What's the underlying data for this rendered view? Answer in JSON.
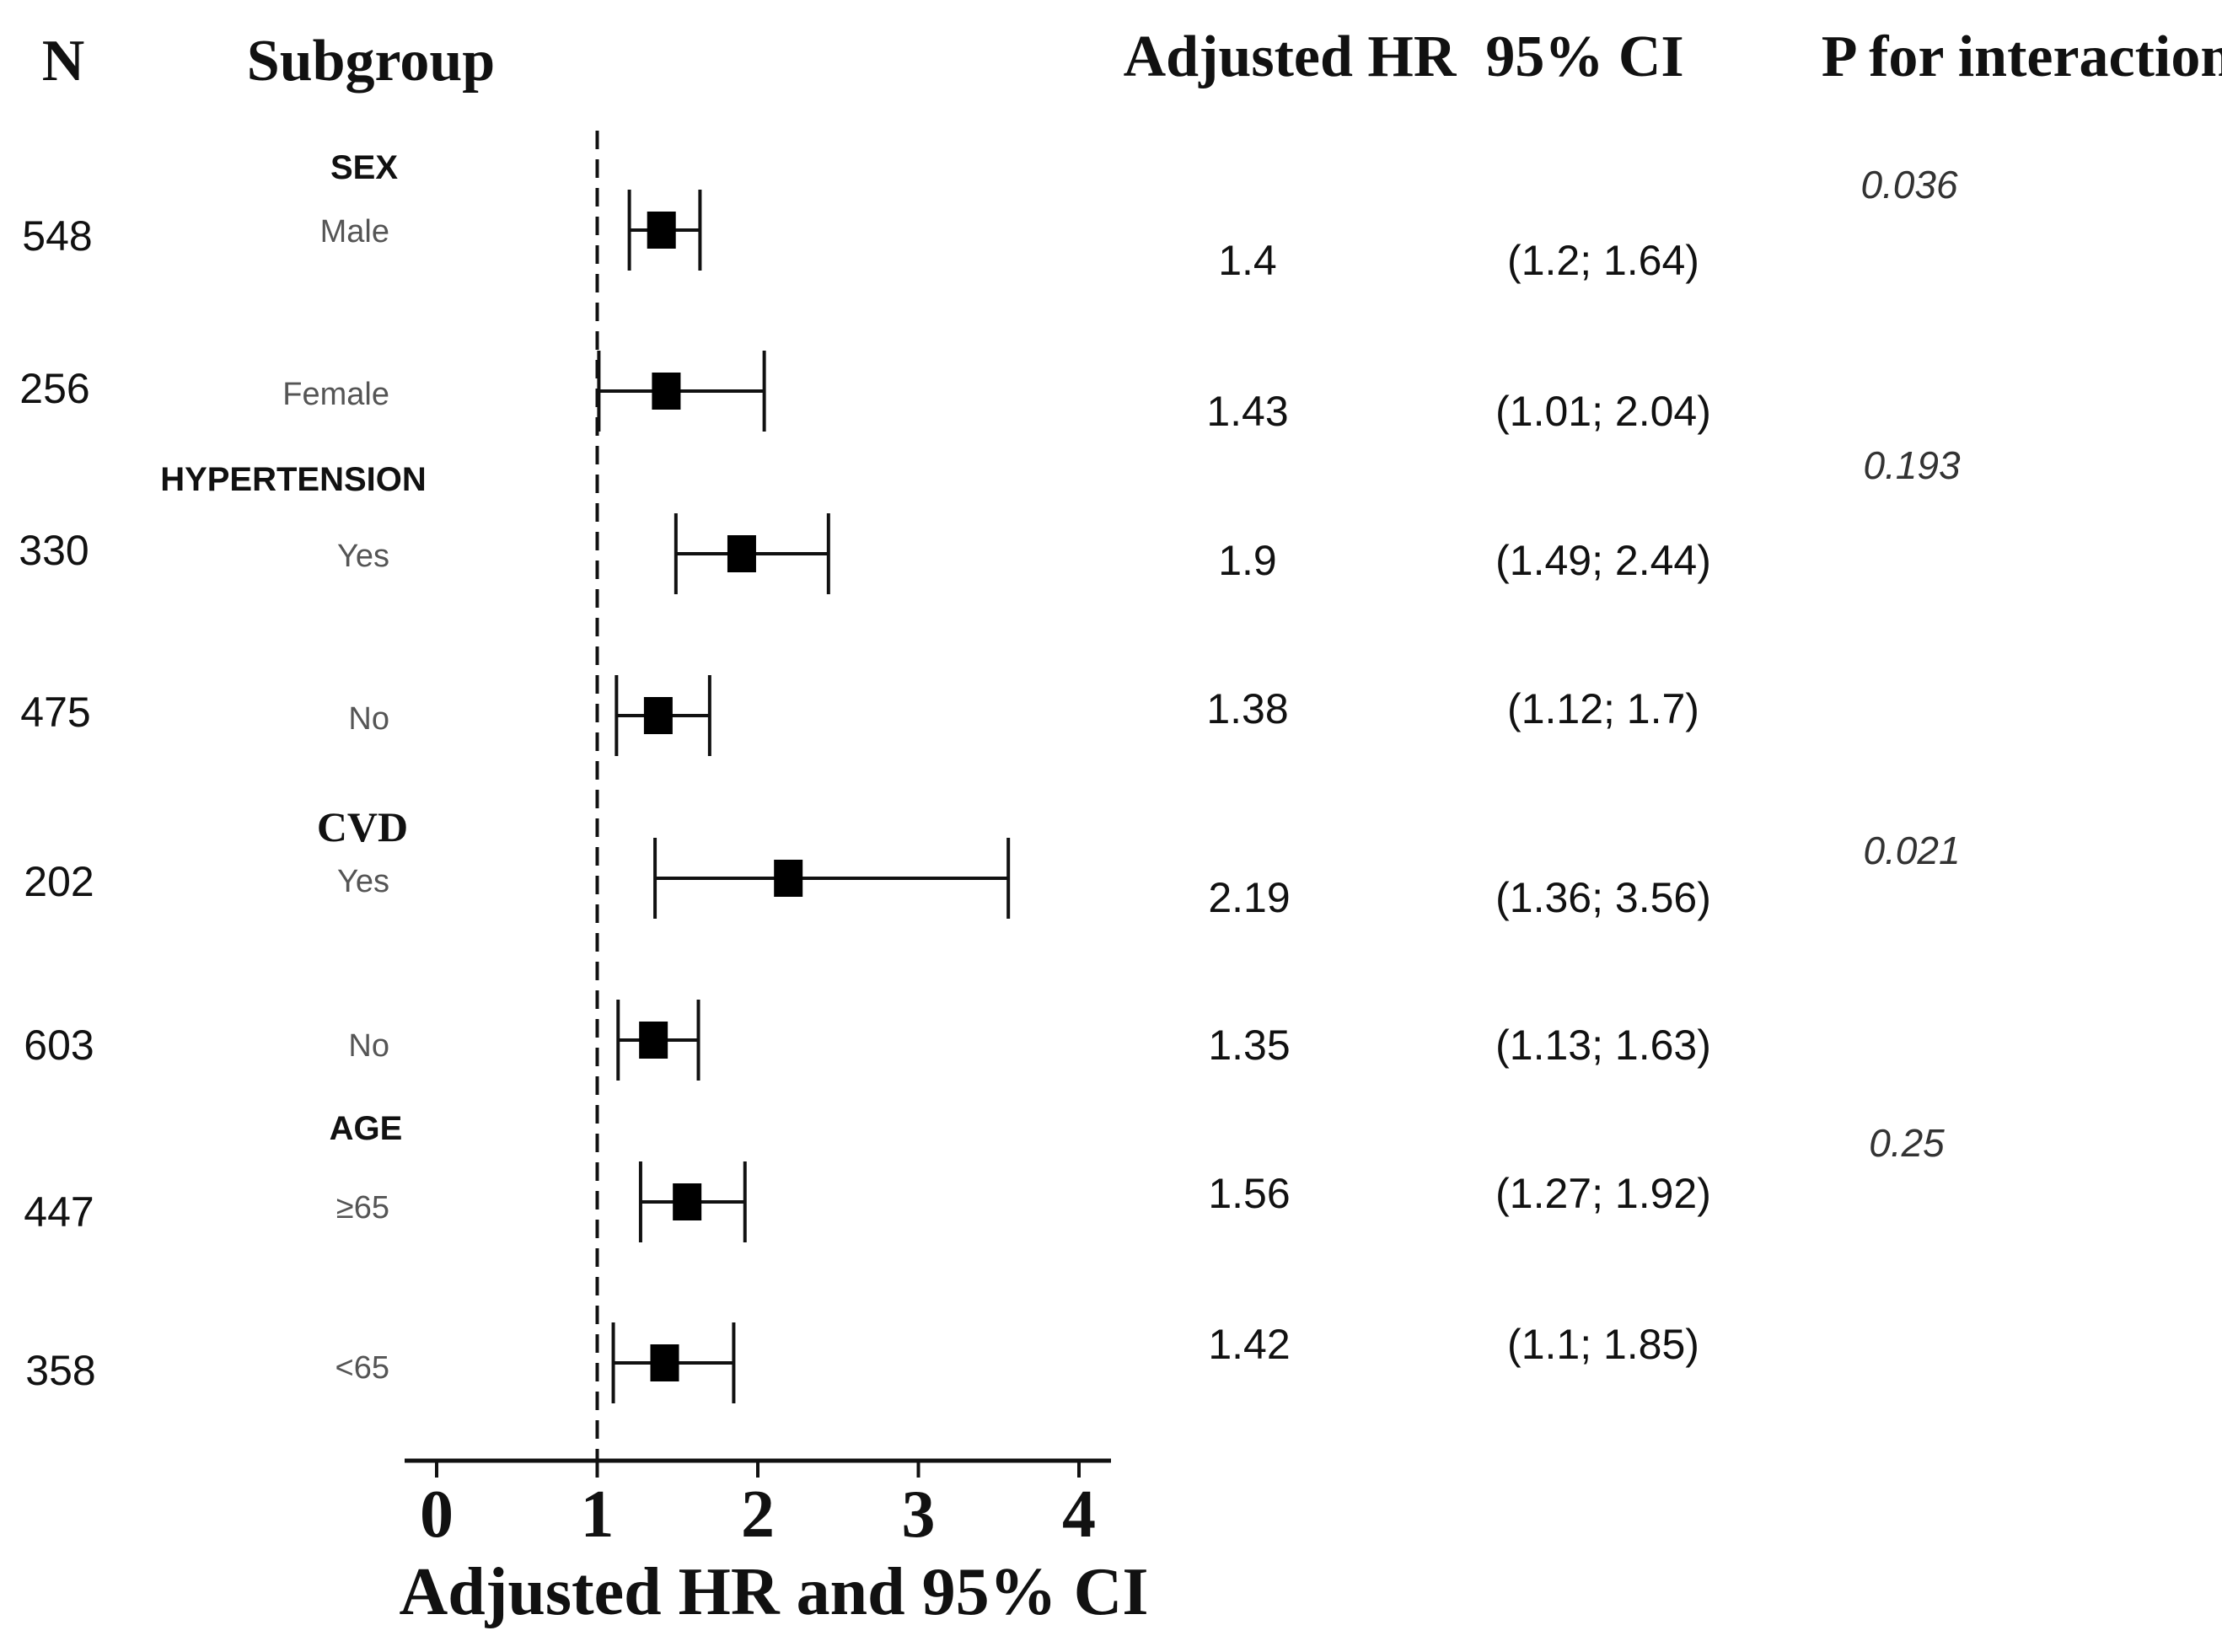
{
  "headers": {
    "n": "N",
    "subgroup": "Subgroup",
    "hr": "Adjusted HR",
    "ci": "95% CI",
    "p": "P for interaction"
  },
  "groups": [
    {
      "label": "SEX",
      "p_value": "0.036"
    },
    {
      "label": "HYPERTENSION",
      "p_value": "0.193"
    },
    {
      "label": "CVD",
      "p_value": "0.021"
    },
    {
      "label": "AGE",
      "p_value": "0.25"
    }
  ],
  "rows": [
    {
      "n": "548",
      "subgroup": "Male",
      "hr_text": "1.4",
      "ci_text": "(1.2; 1.64)"
    },
    {
      "n": "256",
      "subgroup": "Female",
      "hr_text": "1.43",
      "ci_text": "(1.01; 2.04)"
    },
    {
      "n": "330",
      "subgroup": "Yes",
      "hr_text": "1.9",
      "ci_text": "(1.49; 2.44)"
    },
    {
      "n": "475",
      "subgroup": "No",
      "hr_text": "1.38",
      "ci_text": "(1.12; 1.7)"
    },
    {
      "n": "202",
      "subgroup": "Yes",
      "hr_text": "2.19",
      "ci_text": "(1.36; 3.56)"
    },
    {
      "n": "603",
      "subgroup": "No",
      "hr_text": "1.35",
      "ci_text": "(1.13; 1.63)"
    },
    {
      "n": "447",
      "subgroup": "≥65",
      "hr_text": "1.56",
      "ci_text": "(1.27; 1.92)"
    },
    {
      "n": "358",
      "subgroup": "<65",
      "hr_text": "1.42",
      "ci_text": "(1.1; 1.85)"
    }
  ],
  "chart_data": {
    "type": "forest",
    "xlabel": "Adjusted HR and 95% CI",
    "xlim": [
      0,
      4
    ],
    "xticks": [
      "0",
      "1",
      "2",
      "3",
      "4"
    ],
    "reference_line": 1,
    "series": [
      {
        "name": "Male",
        "hr": 1.4,
        "lower": 1.2,
        "upper": 1.64
      },
      {
        "name": "Female",
        "hr": 1.43,
        "lower": 1.01,
        "upper": 2.04
      },
      {
        "name": "Hypertension Yes",
        "hr": 1.9,
        "lower": 1.49,
        "upper": 2.44
      },
      {
        "name": "Hypertension No",
        "hr": 1.38,
        "lower": 1.12,
        "upper": 1.7
      },
      {
        "name": "CVD Yes",
        "hr": 2.19,
        "lower": 1.36,
        "upper": 3.56
      },
      {
        "name": "CVD No",
        "hr": 1.35,
        "lower": 1.13,
        "upper": 1.63
      },
      {
        "name": "Age ≥65",
        "hr": 1.56,
        "lower": 1.27,
        "upper": 1.92
      },
      {
        "name": "Age <65",
        "hr": 1.42,
        "lower": 1.1,
        "upper": 1.85
      }
    ]
  }
}
